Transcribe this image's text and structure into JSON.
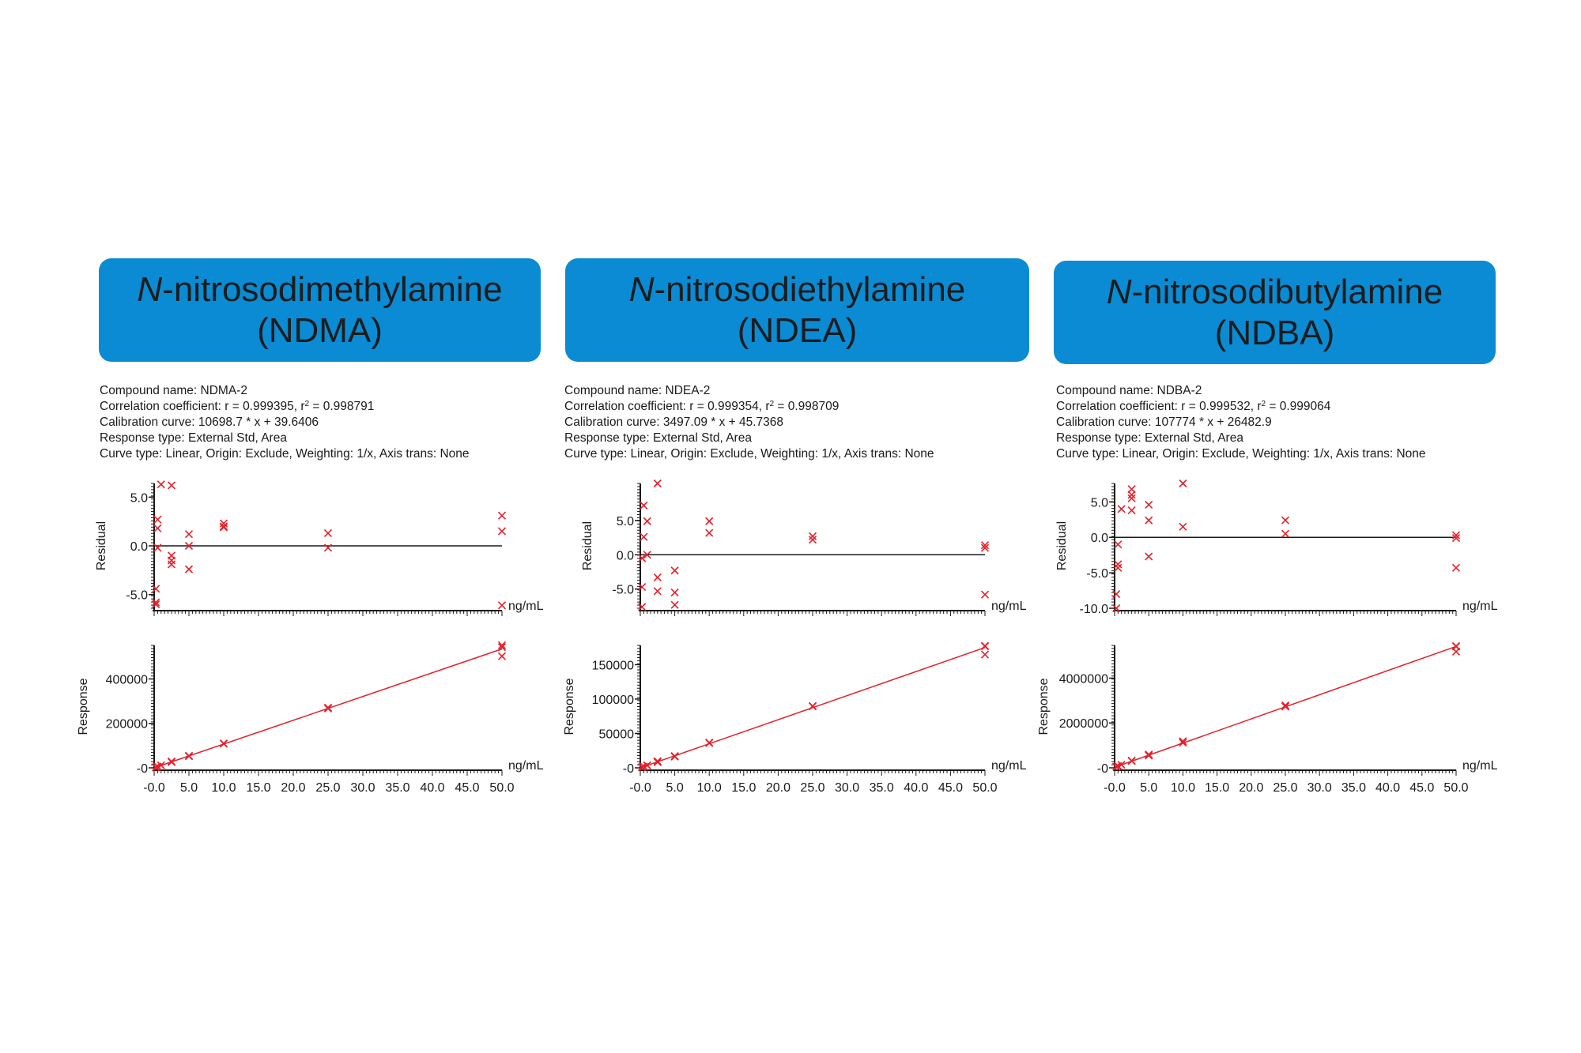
{
  "compounds": [
    {
      "title_prefix": "N",
      "title_rest": "-nitrosodimethylamine",
      "title_abbr": "(NDMA)",
      "info": {
        "compound_name": "Compound name: NDMA-2",
        "correlation_prefix": "Correlation coefficient: r = 0.999395, r",
        "correlation_sup": "2",
        "correlation_suffix": " = 0.998791",
        "calibration": "Calibration curve: 10698.7 * x + 39.6406",
        "response_type": "Response type: External Std, Area",
        "curve_type": "Curve type: Linear, Origin: Exclude, Weighting: 1/x, Axis trans: None"
      }
    },
    {
      "title_prefix": "N",
      "title_rest": "-nitrosodiethylamine",
      "title_abbr": "(NDEA)",
      "info": {
        "compound_name": "Compound name: NDEA-2",
        "correlation_prefix": "Correlation coefficient: r = 0.999354, r",
        "correlation_sup": "2",
        "correlation_suffix": " = 0.998709",
        "calibration": "Calibration curve: 3497.09 * x + 45.7368",
        "response_type": "Response type: External Std, Area",
        "curve_type": "Curve type: Linear, Origin: Exclude, Weighting: 1/x, Axis trans: None"
      }
    },
    {
      "title_prefix": "N",
      "title_rest": "-nitrosodibutylamine",
      "title_abbr": "(NDBA)",
      "info": {
        "compound_name": "Compound name: NDBA-2",
        "correlation_prefix": "Correlation coefficient: r = 0.999532, r",
        "correlation_sup": "2",
        "correlation_suffix": " = 0.999064",
        "calibration": "Calibration curve: 107774 * x + 26482.9",
        "response_type": "Response type: External Std, Area",
        "curve_type": "Curve type: Linear, Origin: Exclude, Weighting: 1/x, Axis trans: None"
      }
    }
  ],
  "colors": {
    "title_box": "#0a8bd3",
    "marker": "#e3202a",
    "fit_line": "#e3202a",
    "axis": "#1a1a1a"
  },
  "chart_data": [
    {
      "type": "scatter",
      "compound": "NDMA",
      "ylabel": "Residual",
      "xunit": "ng/mL",
      "xlim": [
        0,
        50
      ],
      "ylim": [
        -6.4,
        6.4
      ],
      "grid": false,
      "xticks": [],
      "yticks": [
        {
          "v": 5,
          "label": "5.0"
        },
        {
          "v": 0,
          "label": "0.0"
        },
        {
          "v": -5,
          "label": "-5.0"
        }
      ],
      "zero_line": true,
      "points": [
        [
          0.25,
          -4.4
        ],
        [
          0.25,
          -5.8
        ],
        [
          0.25,
          -6.0
        ],
        [
          0.5,
          2.7
        ],
        [
          0.5,
          1.8
        ],
        [
          0.5,
          -0.2
        ],
        [
          1,
          6.3
        ],
        [
          2.5,
          6.2
        ],
        [
          2.5,
          -1.0
        ],
        [
          2.5,
          -1.5
        ],
        [
          2.5,
          -1.9
        ],
        [
          5,
          1.2
        ],
        [
          5,
          0.0
        ],
        [
          5,
          -2.4
        ],
        [
          10,
          2.3
        ],
        [
          10,
          2.0
        ],
        [
          10,
          1.9
        ],
        [
          25,
          1.3
        ],
        [
          25,
          -0.2
        ],
        [
          50,
          3.1
        ],
        [
          50,
          1.5
        ],
        [
          50,
          -6.1
        ]
      ]
    },
    {
      "type": "scatter",
      "compound": "NDMA",
      "ylabel": "Response",
      "xunit": "ng/mL",
      "xlim": [
        0,
        50
      ],
      "ylim": [
        0,
        551000
      ],
      "grid": false,
      "xticks": [
        "-0.0",
        "5.0",
        "10.0",
        "15.0",
        "20.0",
        "25.0",
        "30.0",
        "35.0",
        "40.0",
        "45.0",
        "50.0"
      ],
      "yticks": [
        {
          "v": 400000,
          "label": "400000"
        },
        {
          "v": 200000,
          "label": "200000"
        },
        {
          "v": 0,
          "label": "-0"
        }
      ],
      "fit": {
        "slope": 10698.7,
        "intercept": 39.6406
      },
      "points": [
        [
          0.25,
          2595
        ],
        [
          0.25,
          2557
        ],
        [
          0.25,
          2551
        ],
        [
          0.5,
          5535
        ],
        [
          0.5,
          5486
        ],
        [
          0.5,
          5378
        ],
        [
          1,
          11415
        ],
        [
          2.5,
          28447
        ],
        [
          2.5,
          26518
        ],
        [
          2.5,
          26384
        ],
        [
          2.5,
          26277
        ],
        [
          5,
          54175
        ],
        [
          5,
          53533
        ],
        [
          5,
          52248
        ],
        [
          10,
          109489
        ],
        [
          10,
          109168
        ],
        [
          10,
          109060
        ],
        [
          25,
          270985
        ],
        [
          25,
          266972
        ],
        [
          50,
          551559
        ],
        [
          50,
          543000
        ],
        [
          50,
          502342
        ]
      ]
    },
    {
      "type": "scatter",
      "compound": "NDEA",
      "ylabel": "Residual",
      "xunit": "ng/mL",
      "xlim": [
        0,
        50
      ],
      "ylim": [
        -7.8,
        10.4
      ],
      "grid": false,
      "xticks": [],
      "yticks": [
        {
          "v": 5,
          "label": "5.0"
        },
        {
          "v": 0,
          "label": "0.0"
        },
        {
          "v": -5,
          "label": "-5.0"
        }
      ],
      "zero_line": true,
      "points": [
        [
          0.25,
          -0.5
        ],
        [
          0.25,
          -4.7
        ],
        [
          0.25,
          -7.6
        ],
        [
          0.5,
          7.2
        ],
        [
          0.5,
          2.6
        ],
        [
          1,
          4.9
        ],
        [
          1,
          0.0
        ],
        [
          2.5,
          10.4
        ],
        [
          2.5,
          -3.3
        ],
        [
          2.5,
          -5.3
        ],
        [
          5,
          -2.3
        ],
        [
          5,
          -5.5
        ],
        [
          5,
          -7.3
        ],
        [
          10,
          4.9
        ],
        [
          10,
          3.2
        ],
        [
          25,
          2.7
        ],
        [
          25,
          2.2
        ],
        [
          50,
          1.4
        ],
        [
          50,
          1.0
        ],
        [
          50,
          -5.8
        ]
      ]
    },
    {
      "type": "scatter",
      "compound": "NDEA",
      "ylabel": "Response",
      "xunit": "ng/mL",
      "xlim": [
        0,
        50
      ],
      "ylim": [
        0,
        178000
      ],
      "grid": false,
      "xticks": [
        "-0.0",
        "5.0",
        "10.0",
        "15.0",
        "20.0",
        "25.0",
        "30.0",
        "35.0",
        "40.0",
        "45.0",
        "50.0"
      ],
      "yticks": [
        {
          "v": 150000,
          "label": "150000"
        },
        {
          "v": 100000,
          "label": "100000"
        },
        {
          "v": 50000,
          "label": "50000"
        },
        {
          "v": 0,
          "label": "-0"
        }
      ],
      "fit": {
        "slope": 3497.09,
        "intercept": 45.7368
      },
      "points": [
        [
          0.25,
          915
        ],
        [
          0.25,
          877
        ],
        [
          0.25,
          850
        ],
        [
          0.5,
          1923
        ],
        [
          0.5,
          1841
        ],
        [
          1,
          3717
        ],
        [
          1,
          3543
        ],
        [
          2.5,
          9702
        ],
        [
          2.5,
          8498
        ],
        [
          2.5,
          8322
        ],
        [
          5,
          17128
        ],
        [
          5,
          16567
        ],
        [
          5,
          16251
        ],
        [
          10,
          36733
        ],
        [
          10,
          36138
        ],
        [
          25,
          89835
        ],
        [
          25,
          89397
        ],
        [
          50,
          177349
        ],
        [
          50,
          176649
        ],
        [
          50,
          164756
        ]
      ]
    },
    {
      "type": "scatter",
      "compound": "NDBA",
      "ylabel": "Residual",
      "xunit": "ng/mL",
      "xlim": [
        0,
        50
      ],
      "ylim": [
        -10,
        7.6
      ],
      "grid": false,
      "xticks": [],
      "yticks": [
        {
          "v": 5,
          "label": "5.0"
        },
        {
          "v": 0,
          "label": "0.0"
        },
        {
          "v": -5,
          "label": "-5.0"
        },
        {
          "v": -10,
          "label": "-10.0"
        }
      ],
      "zero_line": true,
      "points": [
        [
          0.25,
          -8.0
        ],
        [
          0.25,
          -10.0
        ],
        [
          0.5,
          -1.0
        ],
        [
          0.5,
          -3.8
        ],
        [
          0.5,
          -4.3
        ],
        [
          1,
          4.0
        ],
        [
          2.5,
          6.8
        ],
        [
          2.5,
          6.0
        ],
        [
          2.5,
          5.5
        ],
        [
          2.5,
          3.8
        ],
        [
          5,
          4.6
        ],
        [
          5,
          2.4
        ],
        [
          5,
          -2.7
        ],
        [
          10,
          7.6
        ],
        [
          10,
          1.5
        ],
        [
          25,
          2.4
        ],
        [
          25,
          0.5
        ],
        [
          50,
          0.3
        ],
        [
          50,
          -0.1
        ],
        [
          50,
          -4.3
        ]
      ]
    },
    {
      "type": "scatter",
      "compound": "NDBA",
      "ylabel": "Response",
      "xunit": "ng/mL",
      "xlim": [
        0,
        50
      ],
      "ylim": [
        0,
        5460000
      ],
      "grid": false,
      "xticks": [
        "-0.0",
        "5.0",
        "10.0",
        "15.0",
        "20.0",
        "25.0",
        "30.0",
        "35.0",
        "40.0",
        "45.0",
        "50.0"
      ],
      "yticks": [
        {
          "v": 4000000,
          "label": "4000000"
        },
        {
          "v": 2000000,
          "label": "2000000"
        },
        {
          "v": 0,
          "label": "-0"
        }
      ],
      "fit": {
        "slope": 107774,
        "intercept": 26482.9
      },
      "points": [
        [
          0.25,
          49153
        ],
        [
          0.25,
          48084
        ],
        [
          0.5,
          79566
        ],
        [
          0.5,
          77316
        ],
        [
          0.5,
          76914
        ],
        [
          1,
          139627
        ],
        [
          2.5,
          316040
        ],
        [
          2.5,
          313673
        ],
        [
          2.5,
          312193
        ],
        [
          2.5,
          307163
        ],
        [
          5,
          591359
        ],
        [
          5,
          578922
        ],
        [
          5,
          550088
        ],
        [
          10,
          1188144
        ],
        [
          10,
          1120786
        ],
        [
          25,
          2786133
        ],
        [
          25,
          2734437
        ],
        [
          50,
          5431429
        ],
        [
          50,
          5409768
        ],
        [
          50,
          5182330
        ]
      ]
    }
  ]
}
